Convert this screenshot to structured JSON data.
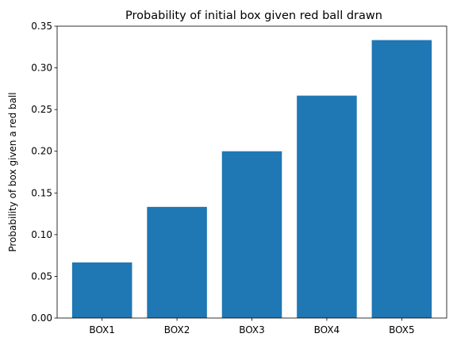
{
  "chart_data": {
    "type": "bar",
    "title": "Probability of initial box given red ball drawn",
    "xlabel": "",
    "ylabel": "Probability of box given a red ball",
    "categories": [
      "BOX1",
      "BOX2",
      "BOX3",
      "BOX4",
      "BOX5"
    ],
    "values": [
      0.0667,
      0.1333,
      0.2,
      0.2667,
      0.3333
    ],
    "ylim": [
      0,
      0.35
    ],
    "yticks": [
      0.0,
      0.05,
      0.1,
      0.15,
      0.2,
      0.25,
      0.3,
      0.35
    ],
    "ytick_labels": [
      "0.00",
      "0.05",
      "0.10",
      "0.15",
      "0.20",
      "0.25",
      "0.30",
      "0.35"
    ],
    "grid": false,
    "bar_color": "#1f77b4"
  }
}
